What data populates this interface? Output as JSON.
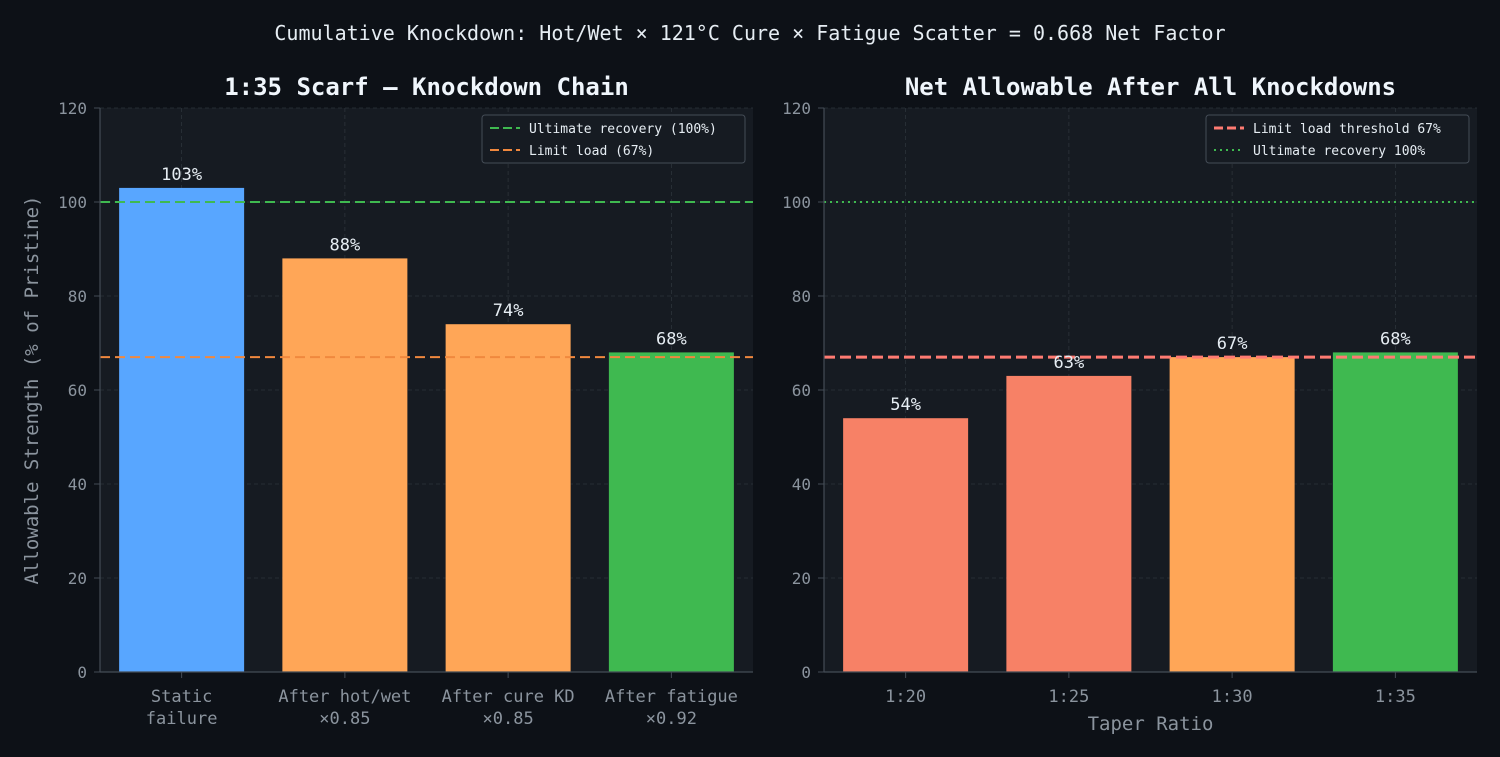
{
  "suptitle": "Cumulative Knockdown: Hot/Wet × 121°C Cure × Fatigue Scatter = 0.668 Net Factor",
  "colors": {
    "background": "#0d1117",
    "axes_bg": "#161b22",
    "grid": "#2d333b",
    "spine": "#444c56",
    "tick_text": "#8b949e",
    "title_text": "#f0f6fc",
    "label_text": "#e6edf3",
    "blue": "#58a6ff",
    "orange": "#ffa657",
    "green": "#3fb950",
    "salmon": "#f78166",
    "dashed_green": "#3fb950",
    "dashed_orange": "#f0883e",
    "dashed_salmon": "#ff7b72"
  },
  "chart_data": [
    {
      "type": "bar",
      "title": "1:35 Scarf — Knockdown Chain",
      "ylabel": "Allowable Strength (% of Pristine)",
      "xlabel": "",
      "ylim": [
        0,
        120
      ],
      "yticks": [
        0,
        20,
        40,
        60,
        80,
        100,
        120
      ],
      "grid": true,
      "categories": [
        [
          "Static",
          "failure"
        ],
        [
          "After hot/wet",
          "×0.85"
        ],
        [
          "After cure KD",
          "×0.85"
        ],
        [
          "After fatigue",
          "×0.92"
        ]
      ],
      "values": [
        103,
        88,
        74,
        68
      ],
      "value_labels": [
        "103%",
        "88%",
        "74%",
        "68%"
      ],
      "bar_colors": [
        "blue",
        "orange",
        "orange",
        "green"
      ],
      "reference_lines": [
        {
          "y": 100,
          "label": "Ultimate recovery (100%)",
          "color": "dashed_green",
          "style": "dashed"
        },
        {
          "y": 67,
          "label": "Limit load (67%)",
          "color": "dashed_orange",
          "style": "dashed"
        }
      ],
      "legend_loc": "top-right"
    },
    {
      "type": "bar",
      "title": "Net Allowable After All Knockdowns",
      "ylabel": "",
      "xlabel": "Taper Ratio",
      "ylim": [
        0,
        120
      ],
      "yticks": [
        0,
        20,
        40,
        60,
        80,
        100,
        120
      ],
      "grid": true,
      "categories": [
        [
          "1:20"
        ],
        [
          "1:25"
        ],
        [
          "1:30"
        ],
        [
          "1:35"
        ]
      ],
      "values": [
        54,
        63,
        67,
        68
      ],
      "value_labels": [
        "54%",
        "63%",
        "67%",
        "68%"
      ],
      "bar_colors": [
        "salmon",
        "salmon",
        "orange",
        "green"
      ],
      "reference_lines": [
        {
          "y": 67,
          "label": "Limit load threshold 67%",
          "color": "dashed_salmon",
          "style": "dashed-bold"
        },
        {
          "y": 100,
          "label": "Ultimate recovery 100%",
          "color": "dashed_green",
          "style": "dotted"
        }
      ],
      "legend_loc": "top-right"
    }
  ]
}
